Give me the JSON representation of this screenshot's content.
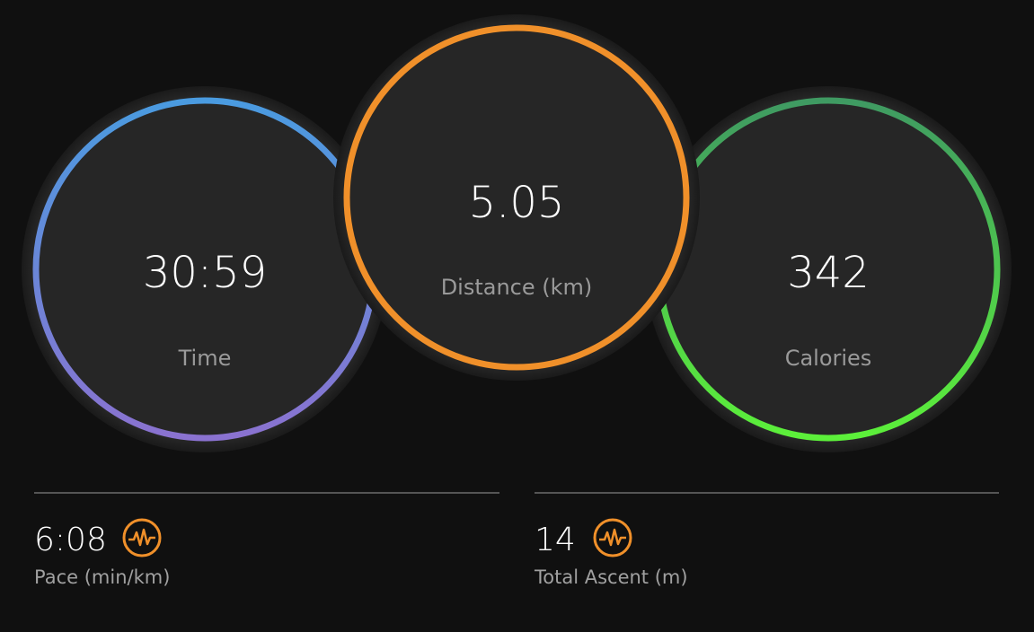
{
  "circles": [
    {
      "value": "30:59",
      "label": "Time"
    },
    {
      "value": "5.05",
      "label": "Distance (km)"
    },
    {
      "value": "342",
      "label": "Calories"
    }
  ],
  "stats": [
    {
      "value": "6:08",
      "label": "Pace (min/km)"
    },
    {
      "value": "14",
      "label": "Total Ascent (m)"
    }
  ]
}
